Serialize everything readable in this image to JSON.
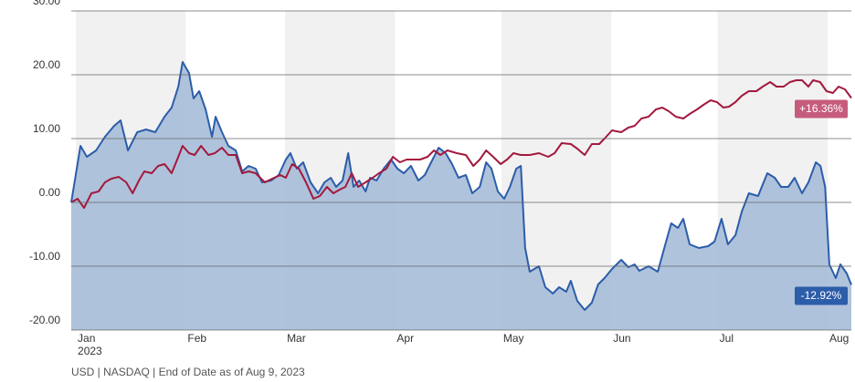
{
  "chart_data": {
    "type": "line",
    "footnote": "USD | NASDAQ | End of Date as of Aug 9, 2023",
    "xlim": [
      -0.3,
      219.7
    ],
    "xticks": [
      {
        "value": 1,
        "label": "Jan"
      },
      {
        "value": 32,
        "label": "Feb"
      },
      {
        "value": 60,
        "label": "Mar"
      },
      {
        "value": 91,
        "label": "Apr"
      },
      {
        "value": 121,
        "label": "May"
      },
      {
        "value": 152,
        "label": "Jun"
      },
      {
        "value": 182,
        "label": "Jul"
      },
      {
        "value": 213,
        "label": "Aug"
      }
    ],
    "x_year_label": "2023",
    "ylim": [
      -20,
      30
    ],
    "yticks": [
      {
        "value": -20,
        "label": "-20.00"
      },
      {
        "value": -10,
        "label": "-10.00"
      },
      {
        "value": 0,
        "label": "0.00"
      },
      {
        "value": 10,
        "label": "10.00"
      },
      {
        "value": 20,
        "label": "20.00"
      },
      {
        "value": 30,
        "label": "30.00"
      }
    ],
    "grid": true,
    "band_color": "#f1f1f1",
    "series": [
      {
        "name": null,
        "color": "#2c5da9",
        "fill": "#a6bcd8",
        "area": true,
        "end_label": "-12.92%",
        "x": [
          -0.3,
          2.3,
          4.1,
          6.7,
          9.2,
          11.8,
          13.6,
          15.7,
          18.3,
          20.8,
          23.4,
          26.0,
          28.0,
          29.9,
          31.1,
          32.9,
          34.2,
          35.8,
          37.6,
          39.4,
          40.4,
          42.2,
          44.0,
          46.1,
          47.9,
          49.7,
          51.7,
          53.5,
          56.1,
          58.2,
          60.2,
          61.5,
          63.3,
          65.1,
          67.2,
          69.3,
          71.1,
          72.9,
          74.4,
          76.2,
          77.8,
          79.3,
          80.9,
          82.7,
          84.0,
          85.8,
          87.8,
          89.9,
          91.7,
          93.5,
          95.5,
          97.6,
          99.4,
          101.2,
          103.3,
          105.3,
          107.1,
          108.9,
          111.0,
          112.8,
          114.9,
          116.7,
          118.2,
          120.0,
          121.8,
          123.4,
          125.2,
          126.5,
          127.7,
          129.0,
          131.6,
          133.4,
          135.5,
          137.3,
          139.3,
          140.6,
          142.4,
          144.5,
          146.5,
          148.3,
          150.1,
          152.2,
          154.8,
          156.8,
          158.6,
          159.9,
          162.5,
          165.1,
          167.1,
          168.9,
          170.8,
          172.3,
          174.1,
          176.7,
          179.3,
          181.1,
          183.1,
          184.9,
          187.0,
          188.8,
          190.8,
          193.4,
          196.0,
          198.1,
          199.9,
          201.9,
          203.7,
          205.8,
          207.6,
          209.7,
          211.0,
          212.3,
          213.5,
          215.3,
          216.6,
          218.4,
          219.7
        ],
        "values": [
          0,
          8.86,
          7.14,
          8.14,
          10.29,
          12.0,
          12.86,
          8.14,
          11.0,
          11.43,
          11.0,
          13.43,
          14.86,
          18.14,
          22.0,
          20.29,
          16.29,
          17.43,
          14.57,
          10.29,
          13.43,
          11.0,
          8.86,
          8.14,
          4.86,
          5.71,
          5.29,
          3.14,
          3.43,
          4.29,
          6.71,
          7.71,
          5.29,
          6.29,
          3.14,
          1.43,
          3.14,
          3.86,
          2.43,
          3.43,
          7.71,
          2.43,
          3.43,
          1.71,
          3.86,
          3.43,
          5.29,
          6.71,
          5.29,
          4.57,
          5.71,
          3.43,
          4.29,
          6.29,
          8.57,
          7.71,
          6.0,
          3.86,
          4.29,
          1.43,
          2.43,
          6.29,
          5.29,
          1.71,
          0.57,
          2.43,
          5.29,
          5.71,
          -7.14,
          -10.86,
          -10.0,
          -13.29,
          -14.29,
          -13.29,
          -14.0,
          -12.29,
          -15.43,
          -16.86,
          -15.71,
          -12.86,
          -11.86,
          -10.43,
          -9.0,
          -10.14,
          -9.71,
          -10.71,
          -10.0,
          -10.86,
          -6.86,
          -3.29,
          -4.0,
          -2.57,
          -6.57,
          -7.14,
          -6.86,
          -6.14,
          -2.57,
          -6.57,
          -5.14,
          -1.43,
          1.43,
          1.0,
          4.57,
          3.86,
          2.43,
          2.43,
          3.86,
          1.43,
          3.14,
          6.29,
          5.71,
          2.43,
          -9.71,
          -11.86,
          -9.71,
          -11.14,
          -12.92
        ]
      },
      {
        "name": null,
        "color": "#a3193d",
        "label_color": "#c65c7c",
        "area": false,
        "end_label": "+16.36%",
        "x": [
          -0.3,
          1.5,
          3.3,
          5.4,
          7.4,
          9.2,
          11.0,
          13.1,
          15.2,
          17.0,
          18.8,
          20.3,
          22.4,
          24.2,
          26.0,
          28.0,
          29.9,
          31.1,
          32.9,
          34.5,
          36.3,
          38.4,
          40.2,
          42.2,
          44.0,
          46.1,
          47.9,
          49.7,
          51.7,
          54.3,
          56.9,
          58.7,
          60.2,
          62.0,
          63.9,
          65.9,
          68.0,
          69.8,
          71.8,
          73.6,
          75.4,
          77.0,
          78.8,
          80.6,
          82.7,
          84.7,
          86.5,
          88.6,
          90.4,
          92.4,
          94.3,
          96.1,
          98.1,
          100.2,
          102.0,
          103.8,
          105.8,
          108.4,
          111.0,
          113.1,
          114.9,
          116.7,
          118.7,
          120.8,
          122.6,
          124.4,
          126.5,
          129.0,
          131.6,
          134.2,
          136.0,
          138.0,
          140.6,
          142.4,
          144.5,
          146.5,
          148.6,
          150.1,
          152.2,
          154.8,
          156.8,
          158.6,
          160.5,
          162.5,
          164.6,
          166.4,
          168.2,
          170.2,
          172.3,
          174.1,
          176.2,
          178.0,
          180.0,
          181.8,
          183.6,
          185.2,
          187.0,
          188.8,
          190.8,
          192.9,
          194.7,
          196.8,
          198.6,
          200.6,
          202.4,
          204.2,
          205.8,
          207.6,
          208.9,
          210.9,
          212.7,
          214.5,
          216.1,
          217.9,
          219.7
        ],
        "values": [
          0,
          0.57,
          -0.86,
          1.43,
          1.71,
          3.14,
          3.71,
          4.0,
          3.14,
          1.43,
          3.43,
          4.86,
          4.57,
          5.71,
          6.0,
          4.57,
          7.14,
          8.86,
          7.71,
          7.43,
          8.86,
          7.43,
          7.71,
          8.57,
          7.43,
          7.43,
          4.57,
          4.86,
          4.57,
          3.14,
          3.86,
          4.29,
          3.86,
          6.0,
          5.29,
          3.14,
          0.57,
          1.0,
          2.43,
          1.43,
          2.0,
          2.43,
          4.57,
          2.43,
          3.14,
          3.86,
          4.57,
          5.29,
          7.14,
          6.29,
          6.71,
          6.71,
          6.71,
          7.14,
          8.14,
          7.43,
          8.14,
          7.71,
          7.43,
          5.71,
          6.71,
          8.14,
          7.14,
          6.0,
          6.71,
          7.71,
          7.43,
          7.43,
          7.71,
          7.14,
          7.71,
          9.29,
          9.14,
          8.43,
          7.43,
          9.14,
          9.14,
          10.0,
          11.29,
          11.0,
          11.71,
          12.0,
          13.14,
          13.43,
          14.57,
          14.86,
          14.29,
          13.43,
          13.14,
          13.86,
          14.57,
          15.29,
          16.0,
          15.71,
          14.86,
          15.0,
          15.71,
          16.71,
          17.43,
          17.43,
          18.14,
          18.86,
          18.14,
          18.14,
          18.86,
          19.14,
          19.14,
          18.14,
          19.14,
          18.86,
          17.43,
          17.14,
          18.14,
          17.71,
          16.36
        ]
      }
    ]
  }
}
